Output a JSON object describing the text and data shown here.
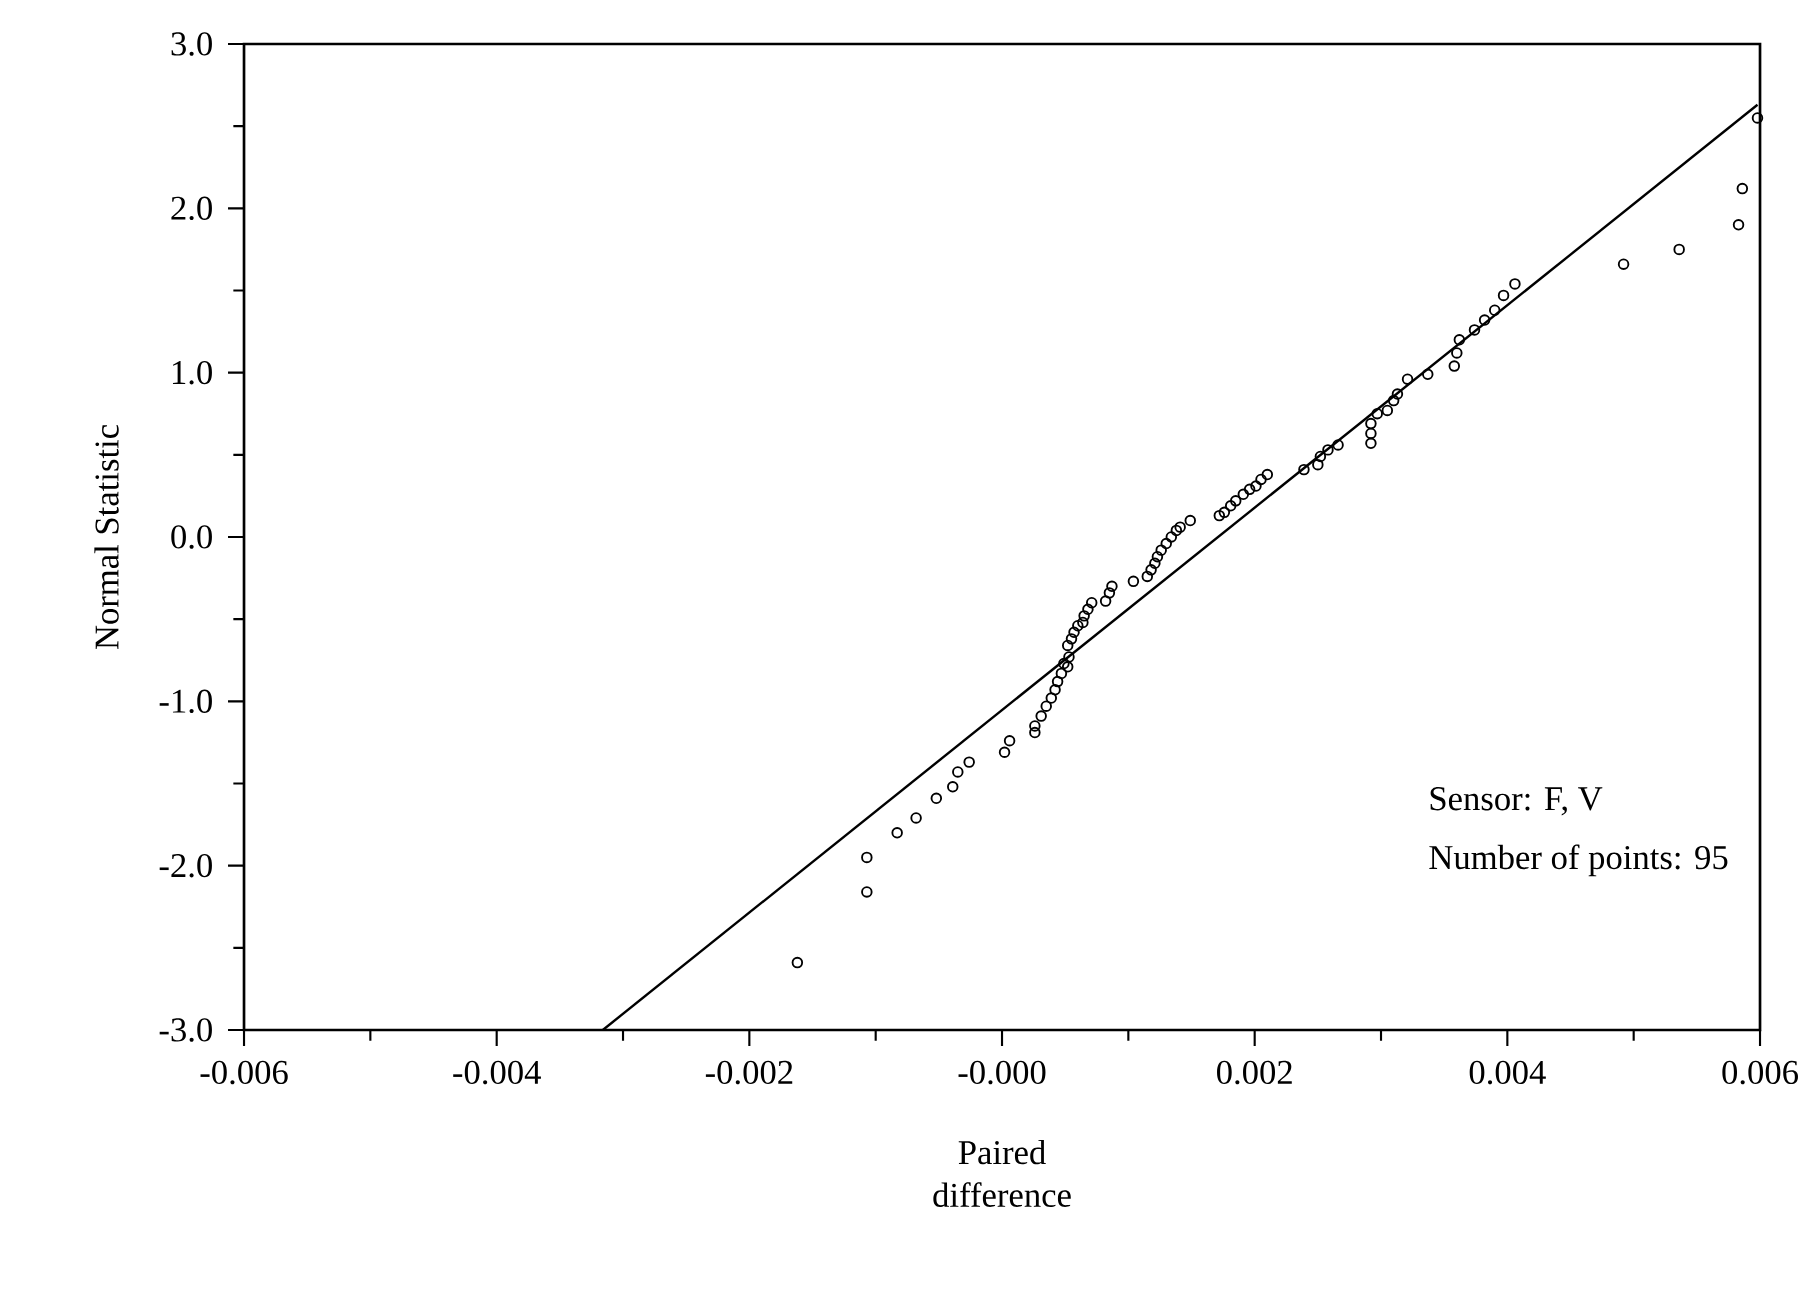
{
  "chart_data": {
    "type": "scatter",
    "xlabel": "Paired difference",
    "ylabel": "Normal Statistic",
    "xlim": [
      -0.006,
      0.006
    ],
    "ylim": [
      -3.0,
      3.0
    ],
    "xticks": [
      {
        "value": -0.006,
        "label": "-0.006"
      },
      {
        "value": -0.005,
        "label": null
      },
      {
        "value": -0.004,
        "label": "-0.004"
      },
      {
        "value": -0.003,
        "label": null
      },
      {
        "value": -0.002,
        "label": "-0.002"
      },
      {
        "value": -0.001,
        "label": null
      },
      {
        "value": 0,
        "label": "-0.000"
      },
      {
        "value": 0.001,
        "label": null
      },
      {
        "value": 0.002,
        "label": "0.002"
      },
      {
        "value": 0.003,
        "label": null
      },
      {
        "value": 0.004,
        "label": "0.004"
      },
      {
        "value": 0.005,
        "label": null
      },
      {
        "value": 0.006,
        "label": "0.006"
      }
    ],
    "yticks": [
      {
        "value": -3,
        "label": "-3.0"
      },
      {
        "value": -2.5,
        "label": null
      },
      {
        "value": -2,
        "label": "-2.0"
      },
      {
        "value": -1.5,
        "label": null
      },
      {
        "value": -1,
        "label": "-1.0"
      },
      {
        "value": -0.5,
        "label": null
      },
      {
        "value": 0,
        "label": "0.0"
      },
      {
        "value": 0.5,
        "label": null
      },
      {
        "value": 1,
        "label": "1.0"
      },
      {
        "value": 1.5,
        "label": null
      },
      {
        "value": 2,
        "label": "2.0"
      },
      {
        "value": 2.5,
        "label": null
      },
      {
        "value": 3,
        "label": "3.0"
      }
    ],
    "annotations": [
      "Sensor: F, V",
      "Number of points: 95"
    ],
    "series": [
      {
        "color": "#000000",
        "marker": "circle",
        "x": [
          -0.00162,
          -0.00107,
          -0.00107,
          -0.00083,
          -0.00068,
          -0.00052,
          -0.00039,
          -0.00035,
          -0.00026,
          2e-05,
          6e-05,
          0.00026,
          0.00026,
          0.00031,
          0.00035,
          0.00039,
          0.00042,
          0.00044,
          0.00047,
          0.00049,
          0.00052,
          0.00053,
          0.00052,
          0.00055,
          0.00057,
          0.0006,
          0.00064,
          0.00065,
          0.00068,
          0.00071,
          0.00082,
          0.00085,
          0.00087,
          0.00104,
          0.00115,
          0.00118,
          0.00121,
          0.00123,
          0.00126,
          0.0013,
          0.00134,
          0.00138,
          0.00141,
          0.00149,
          0.00172,
          0.00176,
          0.00181,
          0.00185,
          0.00191,
          0.00196,
          0.00201,
          0.00205,
          0.0021,
          0.00239,
          0.0025,
          0.00252,
          0.00258,
          0.00266,
          0.00292,
          0.00292,
          0.00292,
          0.00297,
          0.00305,
          0.0031,
          0.00313,
          0.00321,
          0.00337,
          0.00358,
          0.0036,
          0.00362,
          0.00374,
          0.00382,
          0.0039,
          0.00397,
          0.00406,
          0.00492,
          0.00536,
          0.00583,
          0.00586,
          0.00598
        ],
        "values": [
          -2.59,
          -2.16,
          -1.95,
          -1.8,
          -1.71,
          -1.59,
          -1.52,
          -1.43,
          -1.37,
          -1.31,
          -1.24,
          -1.19,
          -1.15,
          -1.09,
          -1.03,
          -0.98,
          -0.93,
          -0.88,
          -0.83,
          -0.77,
          -0.79,
          -0.73,
          -0.66,
          -0.62,
          -0.58,
          -0.54,
          -0.52,
          -0.48,
          -0.44,
          -0.4,
          -0.39,
          -0.34,
          -0.3,
          -0.27,
          -0.24,
          -0.2,
          -0.16,
          -0.12,
          -0.08,
          -0.04,
          0.0,
          0.04,
          0.06,
          0.1,
          0.13,
          0.15,
          0.19,
          0.22,
          0.26,
          0.29,
          0.31,
          0.35,
          0.38,
          0.41,
          0.44,
          0.49,
          0.53,
          0.56,
          0.57,
          0.63,
          0.69,
          0.75,
          0.77,
          0.83,
          0.87,
          0.96,
          0.99,
          1.04,
          1.12,
          1.2,
          1.26,
          1.32,
          1.38,
          1.47,
          1.54,
          1.66,
          1.75,
          1.9,
          2.12,
          2.55
        ]
      },
      {
        "type": "line",
        "color": "#000000",
        "marker": "none",
        "line_style": "solid",
        "x": [
          -0.00316,
          0.00598
        ],
        "values": [
          -3.0,
          2.63
        ]
      }
    ]
  }
}
